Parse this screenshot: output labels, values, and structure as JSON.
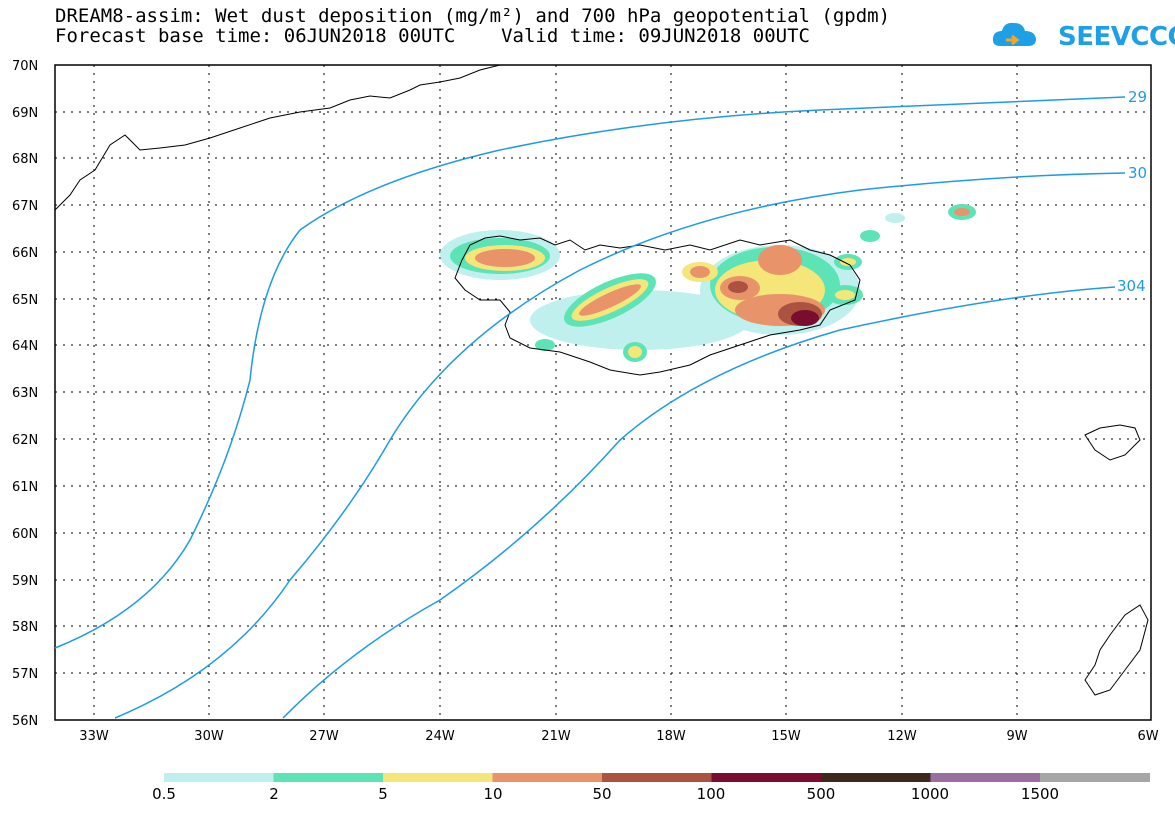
{
  "header": {
    "title_line1": "DREAM8-assim: Wet dust deposition (mg/m²) and 700 hPa geopotential (gpdm)",
    "title_line2": "Forecast base time: 06JUN2018 00UTC    Valid time: 09JUN2018 00UTC",
    "logo_text": "SEEVCCC",
    "logo_color": "#1ea0e6"
  },
  "map": {
    "lon_range": [
      -34.5,
      -6.0
    ],
    "lat_range": [
      56.0,
      70.0
    ],
    "lat_ticks": [
      "70N",
      "69N",
      "68N",
      "67N",
      "66N",
      "65N",
      "64N",
      "63N",
      "62N",
      "61N",
      "60N",
      "59N",
      "58N",
      "57N",
      "56N"
    ],
    "lon_ticks": [
      "33W",
      "30W",
      "27W",
      "24W",
      "21W",
      "18W",
      "15W",
      "12W",
      "9W",
      "6W"
    ],
    "contour_color": "#1e9be6",
    "contour_labels": [
      "29",
      "30",
      "304"
    ]
  },
  "colorbar": {
    "colors": [
      "#c0f0ee",
      "#5ce3b6",
      "#f5e67a",
      "#e8936a",
      "#ac5241",
      "#7a0d2d",
      "#3d281e",
      "#9a6f9f",
      "#a6a6a6"
    ],
    "labels": [
      "0.5",
      "2",
      "5",
      "10",
      "50",
      "100",
      "500",
      "1000",
      "1500"
    ]
  }
}
